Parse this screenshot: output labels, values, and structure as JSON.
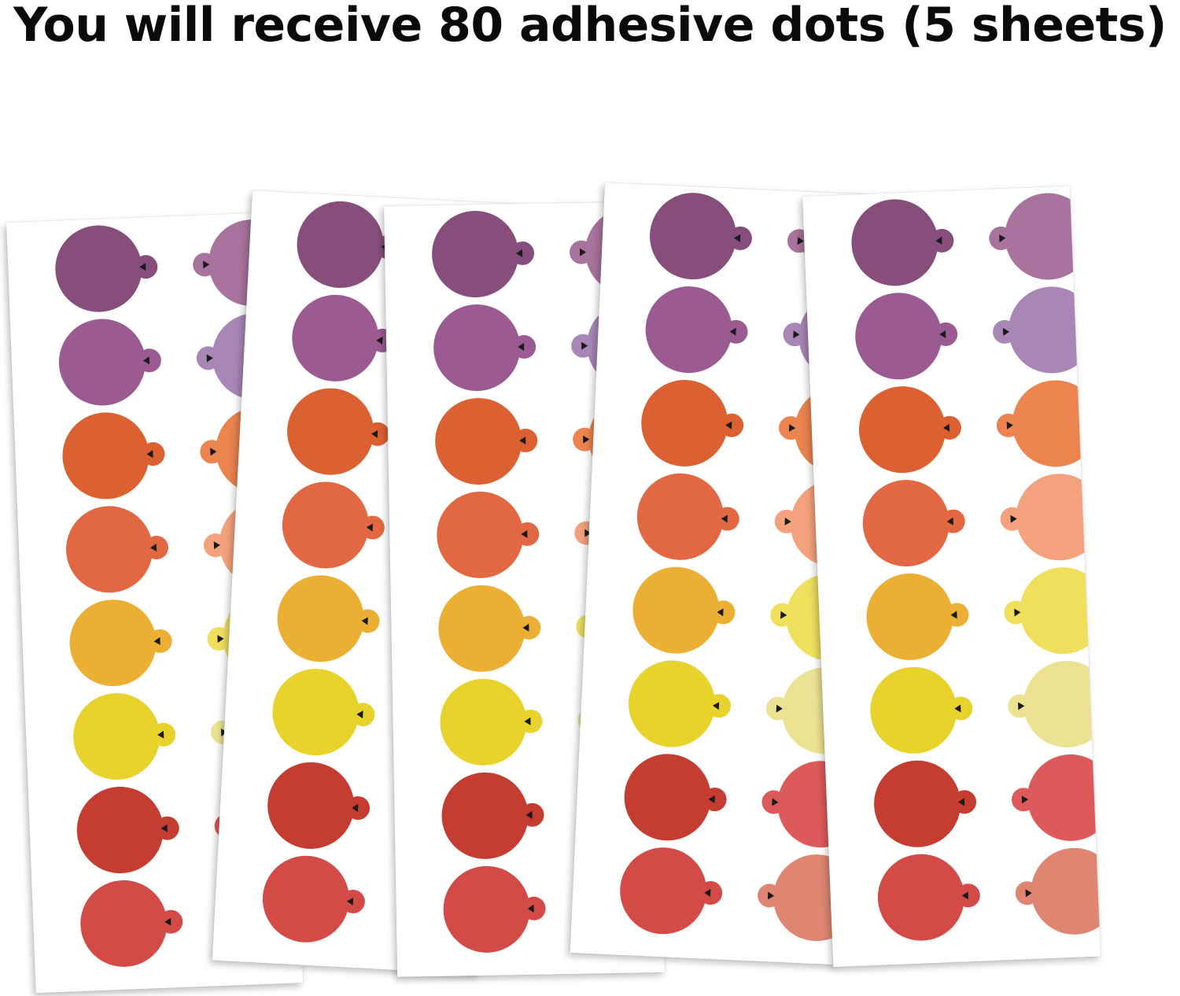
{
  "headline": "You will receive 80 adhesive dots (5 sheets)",
  "palette": {
    "left": [
      "#874e7c",
      "#9b5b92",
      "#db6133",
      "#e26843",
      "#ebaf34",
      "#e8d22c",
      "#c53c31",
      "#d34b46"
    ],
    "right": [
      "#a8739c",
      "#a886b6",
      "#ec8450",
      "#f4a27d",
      "#efdf5d",
      "#ece294",
      "#dd5a5a",
      "#de8672"
    ]
  },
  "sheets": [
    {
      "id": "sheet-1",
      "dots_per_column": 8,
      "columns": 2
    },
    {
      "id": "sheet-2",
      "dots_per_column": 8,
      "columns": 2
    },
    {
      "id": "sheet-3",
      "dots_per_column": 8,
      "columns": 2
    },
    {
      "id": "sheet-4",
      "dots_per_column": 8,
      "columns": 2
    },
    {
      "id": "sheet-5",
      "dots_per_column": 8,
      "columns": 2
    }
  ]
}
